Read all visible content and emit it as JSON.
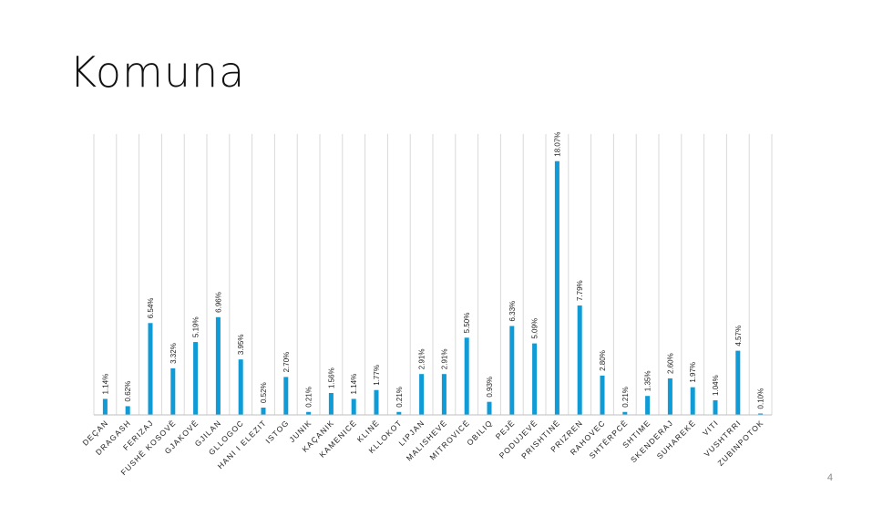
{
  "slide": {
    "title": "Komuna",
    "page_number": "4"
  },
  "colors": {
    "bar": "#0e9bd6",
    "grid": "#d9d9d9",
    "axis": "#bfbfbf",
    "label": "#222222"
  },
  "chart_data": {
    "type": "bar",
    "title": "",
    "xlabel": "",
    "ylabel": "",
    "ylim": [
      0,
      20
    ],
    "grid": "vertical",
    "categories": [
      "DEÇAN",
      "DRAGASH",
      "FERIZAJ",
      "FUSHË KOSOVË",
      "GJAKOVË",
      "GJILAN",
      "GLLOGOC",
      "HANI I ELEZIT",
      "ISTOG",
      "JUNIK",
      "KAÇANIK",
      "KAMENICË",
      "KLINË",
      "KLLOKOT",
      "LIPJAN",
      "MALISHEVË",
      "MITROVICË",
      "OBILIQ",
      "PEJË",
      "PODUJEVË",
      "PRISHTINË",
      "PRIZREN",
      "RAHOVEC",
      "SHTËRPCË",
      "SHTIME",
      "SKENDERAJ",
      "SUHAREKË",
      "VITI",
      "VUSHTRRI",
      "ZUBINPOTOK"
    ],
    "values": [
      1.14,
      0.62,
      6.54,
      3.32,
      5.19,
      6.96,
      3.95,
      0.52,
      2.7,
      0.21,
      1.56,
      1.14,
      1.77,
      0.21,
      2.91,
      2.91,
      5.5,
      0.93,
      6.33,
      5.09,
      18.07,
      7.79,
      2.8,
      0.21,
      1.35,
      2.6,
      1.97,
      1.04,
      4.57,
      0.1
    ],
    "data_labels": [
      "1.14%",
      "0.62%",
      "6.54%",
      "3.32%",
      "5.19%",
      "6.96%",
      "3.95%",
      "0.52%",
      "2.70%",
      "0.21%",
      "1.56%",
      "1.14%",
      "1.77%",
      "0.21%",
      "2.91%",
      "2.91%",
      "5.50%",
      "0.93%",
      "6.33%",
      "5.09%",
      "18.07%",
      "7.79%",
      "2.80%",
      "0.21%",
      "1.35%",
      "2.60%",
      "1.97%",
      "1.04%",
      "4.57%",
      "0.10%"
    ]
  }
}
